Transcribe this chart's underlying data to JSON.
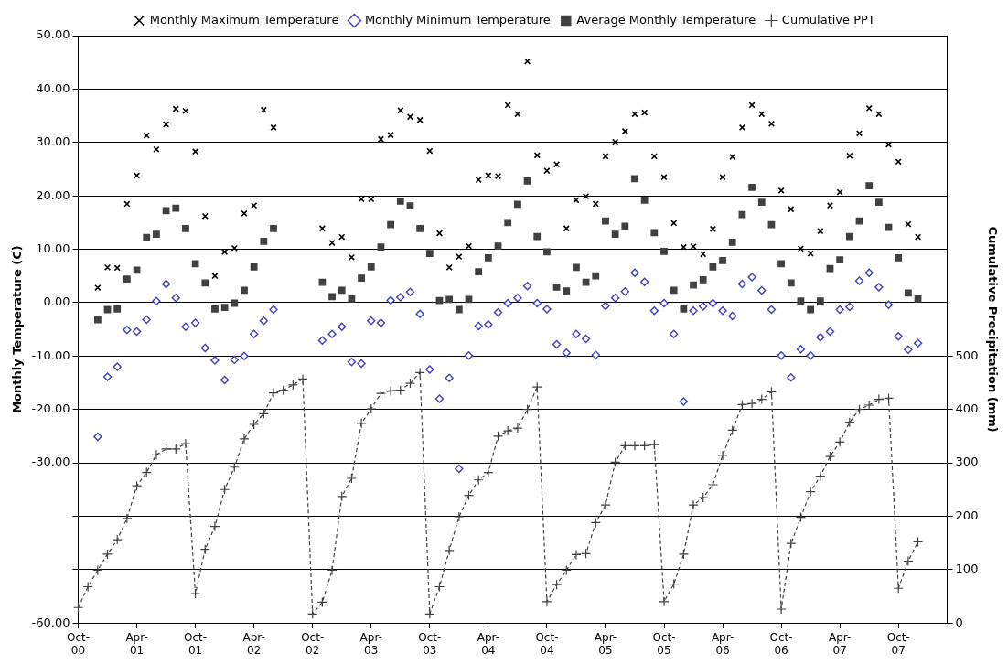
{
  "chart_data": {
    "type": "scatter",
    "ylabel": "Monthly Temperature (C)",
    "y2label": "Cumulative Precipitation (mm)",
    "categories": [
      "Oct-00",
      null,
      null,
      null,
      null,
      null,
      "Apr-01",
      null,
      null,
      null,
      null,
      null,
      "Oct-01",
      null,
      null,
      null,
      null,
      null,
      "Apr-02",
      null,
      null,
      null,
      null,
      null,
      "Oct-02",
      null,
      null,
      null,
      null,
      null,
      "Apr-03",
      null,
      null,
      null,
      null,
      null,
      "Oct-03",
      null,
      null,
      null,
      null,
      null,
      "Apr-04",
      null,
      null,
      null,
      null,
      null,
      "Oct-04",
      null,
      null,
      null,
      null,
      null,
      "Apr-05",
      null,
      null,
      null,
      null,
      null,
      "Oct-05",
      null,
      null,
      null,
      null,
      null,
      "Apr-06",
      null,
      null,
      null,
      null,
      null,
      "Oct-06",
      null,
      null,
      null,
      null,
      null,
      "Apr-07",
      null,
      null,
      null,
      null,
      null,
      "Oct-07",
      null,
      null,
      null,
      null,
      null
    ],
    "series": [
      {
        "name": "Monthly Maximum Temperature",
        "color": "#000000",
        "marker": "cross",
        "values": [
          null,
          null,
          2.8,
          6.6,
          6.5,
          18.5,
          23.8,
          31.3,
          28.7,
          33.4,
          36.3,
          35.9,
          28.3,
          16.2,
          5.0,
          9.5,
          10.2,
          16.7,
          18.2,
          36.1,
          32.8,
          null,
          null,
          null,
          null,
          13.9,
          11.2,
          12.3,
          8.5,
          19.4,
          19.4,
          30.6,
          31.4,
          36.0,
          34.8,
          34.2,
          28.4,
          13.0,
          6.6,
          8.6,
          10.6,
          23.0,
          23.8,
          23.7,
          37.0,
          35.3,
          45.2,
          27.6,
          24.7,
          25.9,
          13.9,
          19.2,
          19.9,
          18.5,
          27.4,
          30.1,
          32.1,
          35.3,
          35.6,
          27.4,
          23.5,
          14.9,
          10.4,
          10.5,
          9.1,
          13.8,
          23.5,
          27.3,
          32.8,
          37.0,
          35.3,
          33.5,
          21.0,
          17.5,
          10.1,
          9.2,
          13.4,
          18.2,
          20.7,
          27.5,
          31.7,
          36.4,
          35.3,
          29.6,
          26.4,
          14.7,
          12.3,
          null,
          null,
          null
        ]
      },
      {
        "name": "Monthly Minimum Temperature",
        "color": "#3f3fbf",
        "marker": "diamond",
        "values": [
          null,
          null,
          -25.1,
          -13.9,
          -12.0,
          -5.1,
          -5.4,
          -3.2,
          0.3,
          3.5,
          0.9,
          -4.5,
          -3.8,
          -8.5,
          -10.8,
          -14.5,
          -10.7,
          -10.0,
          -5.9,
          -3.4,
          -1.3,
          null,
          null,
          null,
          null,
          -7.1,
          -5.9,
          -4.5,
          -11.1,
          -11.4,
          -3.4,
          -3.8,
          0.4,
          1.0,
          2.0,
          -2.1,
          -12.5,
          -18.0,
          -14.1,
          -31.1,
          -9.9,
          -4.4,
          -4.1,
          -1.8,
          -0.1,
          0.9,
          3.1,
          -0.1,
          -1.2,
          -7.8,
          -9.4,
          -5.9,
          -6.8,
          -9.8,
          -0.6,
          0.9,
          2.1,
          5.6,
          3.9,
          -1.5,
          -0.1,
          -5.9,
          -18.5,
          -1.5,
          -0.7,
          -0.1,
          -1.5,
          -2.5,
          3.5,
          4.8,
          2.3,
          -1.3,
          -9.9,
          -14.0,
          -8.7,
          -9.9,
          -6.5,
          -5.4,
          -1.3,
          -0.8,
          4.1,
          5.6,
          2.9,
          -0.4,
          -6.3,
          -8.8,
          -7.6,
          null,
          null,
          null
        ]
      },
      {
        "name": "Average Monthly Temperature",
        "color": "#404040",
        "marker": "square",
        "values": [
          null,
          null,
          -3.2,
          -1.3,
          -1.2,
          4.4,
          6.1,
          12.2,
          12.8,
          17.2,
          17.7,
          13.9,
          7.3,
          3.7,
          -1.2,
          -0.9,
          -0.1,
          2.3,
          6.7,
          11.5,
          13.9,
          null,
          null,
          null,
          null,
          3.8,
          1.1,
          2.3,
          0.7,
          4.6,
          6.7,
          10.4,
          14.6,
          19.0,
          18.1,
          13.9,
          9.2,
          0.4,
          0.6,
          -1.3,
          0.6,
          5.8,
          8.4,
          10.6,
          15.0,
          18.4,
          22.8,
          12.4,
          9.5,
          2.9,
          2.2,
          6.6,
          3.8,
          5.0,
          15.3,
          12.8,
          14.3,
          23.2,
          19.2,
          13.1,
          9.6,
          2.3,
          -1.2,
          3.3,
          4.3,
          6.7,
          7.9,
          11.3,
          16.5,
          21.6,
          18.8,
          14.6,
          7.3,
          3.7,
          0.3,
          -1.3,
          0.3,
          6.4,
          8.0,
          12.4,
          15.3,
          21.9,
          18.8,
          14.1,
          8.4,
          1.8,
          0.7,
          null,
          null,
          null
        ]
      },
      {
        "name": "Cumulative PPT",
        "type": "line",
        "axis": "y2",
        "color": "#404040",
        "marker": "cross",
        "line_style": "dashed",
        "values": [
          29,
          68,
          99,
          129,
          156,
          196,
          257,
          282,
          315,
          326,
          326,
          336,
          55,
          138,
          181,
          250,
          292,
          345,
          372,
          392,
          431,
          436,
          446,
          457,
          17,
          39,
          99,
          237,
          271,
          374,
          401,
          430,
          435,
          436,
          449,
          469,
          17,
          68,
          136,
          199,
          239,
          268,
          282,
          350,
          360,
          365,
          400,
          442,
          40,
          72,
          99,
          128,
          130,
          188,
          221,
          301,
          332,
          332,
          332,
          334,
          40,
          73,
          129,
          221,
          235,
          259,
          314,
          361,
          409,
          411,
          419,
          433,
          26,
          149,
          198,
          246,
          275,
          312,
          339,
          376,
          400,
          408,
          419,
          421,
          65,
          116,
          152,
          null,
          null,
          null
        ]
      }
    ],
    "ylim": [
      -60,
      50
    ],
    "yticks": [
      {
        "value": -60,
        "label": "-60.00"
      },
      {
        "value": -50,
        "label": null
      },
      {
        "value": -40,
        "label": null
      },
      {
        "value": -30,
        "label": "-30.00"
      },
      {
        "value": -20,
        "label": "-20.00"
      },
      {
        "value": -10,
        "label": "-10.00"
      },
      {
        "value": 0,
        "label": "0.00"
      },
      {
        "value": 10,
        "label": "10.00"
      },
      {
        "value": 20,
        "label": "20.00"
      },
      {
        "value": 30,
        "label": "30.00"
      },
      {
        "value": 40,
        "label": "40.00"
      },
      {
        "value": 50,
        "label": "50.00"
      }
    ],
    "y2lim": [
      0,
      1100
    ],
    "y2ticks": [
      0,
      100,
      200,
      300,
      400,
      500
    ],
    "grid": "y",
    "legend": "top"
  }
}
